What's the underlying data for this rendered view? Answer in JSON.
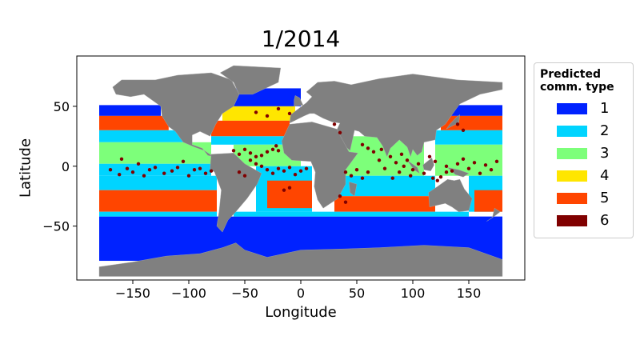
{
  "title": "1/2014",
  "xlabel": "Longitude",
  "ylabel": "Latitude",
  "axes": {
    "xlim": [
      -200,
      200
    ],
    "ylim": [
      -95,
      92
    ],
    "xticks": [
      -150,
      -100,
      -50,
      0,
      50,
      100,
      150
    ],
    "yticks": [
      -50,
      0,
      50
    ],
    "xtick_labels": [
      "−150",
      "−100",
      "−50",
      "0",
      "50",
      "100",
      "150"
    ],
    "ytick_labels": [
      "−50",
      "0",
      "50"
    ]
  },
  "legend": {
    "title_line1": "Predicted",
    "title_line2": "comm. type",
    "placement": "outside-right",
    "items": [
      {
        "label": "1",
        "color": "#0022ff"
      },
      {
        "label": "2",
        "color": "#00d4ff"
      },
      {
        "label": "3",
        "color": "#7dff7a"
      },
      {
        "label": "4",
        "color": "#ffe600"
      },
      {
        "label": "5",
        "color": "#ff4500"
      },
      {
        "label": "6",
        "color": "#800000"
      }
    ]
  },
  "land_color": "#808080"
}
